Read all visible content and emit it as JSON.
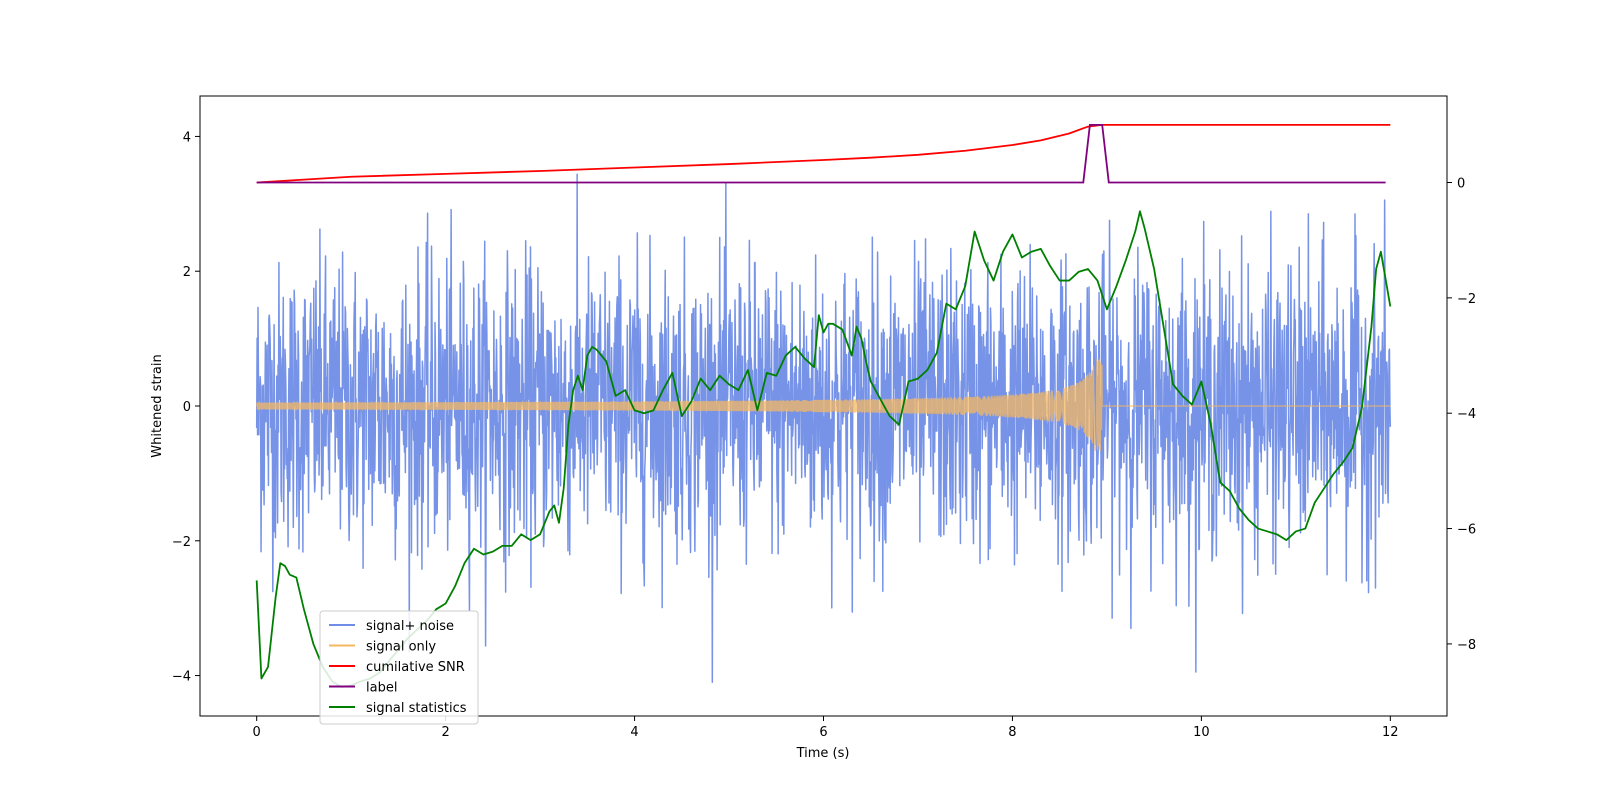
{
  "chart_data": {
    "type": "line",
    "xlabel": "Time (s)",
    "ylabel": "Whitened strain",
    "xlim": [
      -0.6,
      12.6
    ],
    "ylim_left": [
      -4.6,
      4.6
    ],
    "ylim_right": [
      -9.25,
      1.5
    ],
    "x_ticks": [
      0,
      2,
      4,
      6,
      8,
      10,
      12
    ],
    "y_ticks_left": [
      -4,
      -2,
      0,
      2,
      4
    ],
    "y_ticks_right": [
      -8,
      -6,
      -4,
      -2,
      0
    ],
    "legend_position": "lower-left",
    "grid": false,
    "series": [
      {
        "name": "signal+ noise",
        "axis": "left",
        "color": "#6f8de6",
        "noise_band": [
          -2.3,
          2.3
        ],
        "duration": 12.0
      },
      {
        "name": "signal only",
        "axis": "left",
        "color": "#f5b862",
        "chirp_start_amplitude": 0.05,
        "chirp_peak_amplitude": 0.7,
        "merger_time": 8.95,
        "duration": 12.0
      },
      {
        "name": "cumilative SNR",
        "axis": "right",
        "color": "#ff0000",
        "x": [
          0,
          1,
          2,
          3,
          4,
          5,
          6,
          6.5,
          7,
          7.5,
          8,
          8.3,
          8.6,
          8.8,
          8.95,
          9.2,
          12
        ],
        "y": [
          0,
          0.1,
          0.15,
          0.2,
          0.26,
          0.32,
          0.39,
          0.43,
          0.48,
          0.55,
          0.65,
          0.73,
          0.85,
          0.97,
          1.0,
          1.0,
          1.0
        ]
      },
      {
        "name": "label",
        "axis": "right",
        "color": "#800080",
        "x": [
          0,
          8.75,
          8.82,
          8.95,
          9.02,
          11.95
        ],
        "y": [
          0,
          0,
          1,
          1,
          0,
          0
        ]
      },
      {
        "name": "signal statistics",
        "axis": "right",
        "color": "#008000",
        "x": [
          0,
          0.05,
          0.12,
          0.2,
          0.25,
          0.3,
          0.35,
          0.42,
          0.5,
          0.6,
          0.7,
          0.8,
          0.9,
          1.0,
          1.1,
          1.2,
          1.3,
          1.4,
          1.5,
          1.6,
          1.7,
          1.8,
          1.9,
          2.0,
          2.1,
          2.2,
          2.3,
          2.4,
          2.5,
          2.6,
          2.7,
          2.8,
          2.9,
          3.0,
          3.1,
          3.15,
          3.2,
          3.25,
          3.3,
          3.35,
          3.4,
          3.45,
          3.5,
          3.55,
          3.6,
          3.65,
          3.7,
          3.75,
          3.8,
          3.9,
          4.0,
          4.1,
          4.2,
          4.3,
          4.4,
          4.5,
          4.6,
          4.7,
          4.8,
          4.9,
          5.0,
          5.1,
          5.2,
          5.3,
          5.4,
          5.5,
          5.6,
          5.7,
          5.8,
          5.9,
          5.95,
          6.0,
          6.05,
          6.1,
          6.2,
          6.3,
          6.35,
          6.4,
          6.45,
          6.5,
          6.6,
          6.7,
          6.8,
          6.9,
          7.0,
          7.1,
          7.2,
          7.3,
          7.4,
          7.5,
          7.6,
          7.7,
          7.8,
          7.9,
          8.0,
          8.1,
          8.2,
          8.3,
          8.4,
          8.5,
          8.6,
          8.7,
          8.8,
          8.9,
          9.0,
          9.1,
          9.2,
          9.3,
          9.35,
          9.4,
          9.5,
          9.6,
          9.7,
          9.8,
          9.9,
          10.0,
          10.1,
          10.2,
          10.3,
          10.4,
          10.5,
          10.6,
          10.7,
          10.8,
          10.9,
          11.0,
          11.1,
          11.2,
          11.3,
          11.4,
          11.5,
          11.6,
          11.7,
          11.8,
          11.85,
          11.9,
          12.0
        ],
        "y": [
          -6.9,
          -8.6,
          -8.4,
          -7.2,
          -6.6,
          -6.65,
          -6.8,
          -6.85,
          -7.4,
          -8.0,
          -8.4,
          -8.65,
          -8.75,
          -8.72,
          -8.65,
          -8.6,
          -8.5,
          -8.3,
          -8.1,
          -7.9,
          -7.75,
          -7.6,
          -7.4,
          -7.3,
          -7.0,
          -6.6,
          -6.35,
          -6.45,
          -6.4,
          -6.3,
          -6.3,
          -6.1,
          -6.2,
          -6.1,
          -5.7,
          -5.6,
          -5.9,
          -5.3,
          -4.2,
          -3.6,
          -3.35,
          -3.6,
          -3.0,
          -2.85,
          -2.9,
          -3.0,
          -3.1,
          -3.4,
          -3.7,
          -3.6,
          -3.95,
          -4.0,
          -3.95,
          -3.6,
          -3.3,
          -4.05,
          -3.8,
          -3.4,
          -3.6,
          -3.35,
          -3.5,
          -3.6,
          -3.25,
          -3.95,
          -3.3,
          -3.35,
          -3.0,
          -2.85,
          -3.05,
          -3.2,
          -2.3,
          -2.6,
          -2.45,
          -2.45,
          -2.55,
          -3.0,
          -2.5,
          -2.7,
          -3.1,
          -3.45,
          -3.75,
          -4.05,
          -4.2,
          -3.45,
          -3.4,
          -3.25,
          -2.95,
          -2.1,
          -2.2,
          -1.8,
          -0.85,
          -1.35,
          -1.7,
          -1.2,
          -0.9,
          -1.3,
          -1.2,
          -1.15,
          -1.45,
          -1.7,
          -1.7,
          -1.55,
          -1.5,
          -1.7,
          -2.2,
          -1.8,
          -1.35,
          -0.85,
          -0.5,
          -0.8,
          -1.5,
          -2.5,
          -3.5,
          -3.7,
          -3.85,
          -3.45,
          -4.2,
          -5.2,
          -5.35,
          -5.65,
          -5.85,
          -6.0,
          -6.05,
          -6.1,
          -6.2,
          -6.05,
          -6.0,
          -5.55,
          -5.3,
          -5.05,
          -4.85,
          -4.6,
          -3.9,
          -2.5,
          -1.5,
          -1.2,
          -2.15
        ]
      }
    ]
  }
}
